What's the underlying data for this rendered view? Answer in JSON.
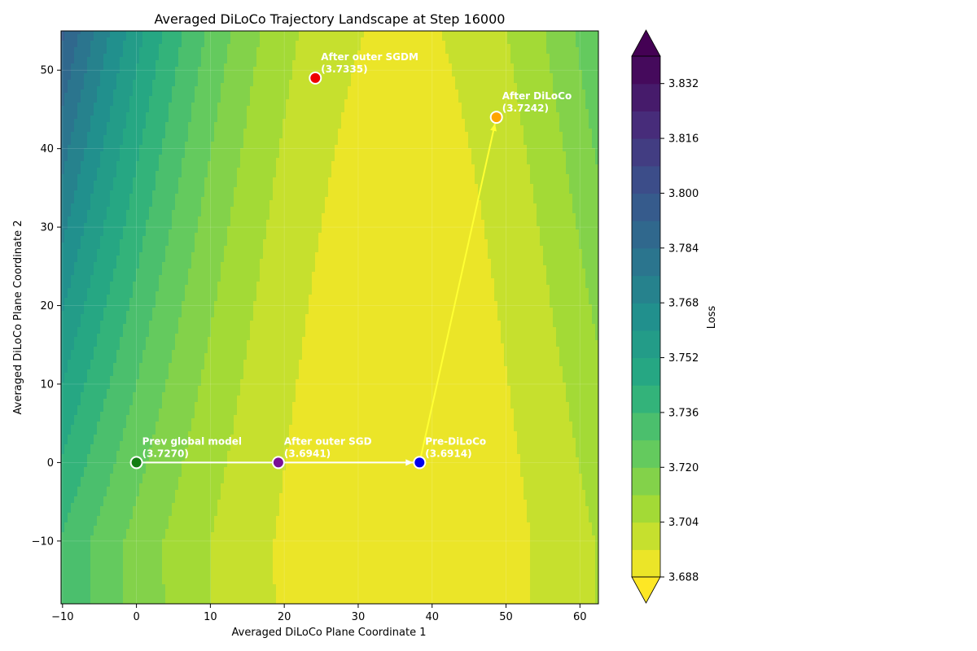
{
  "chart_data": {
    "type": "contour",
    "title": "Averaged DiLoCo Trajectory Landscape at Step 16000",
    "xlabel": "Averaged DiLoCo Plane Coordinate 1",
    "ylabel": "Averaged DiLoCo Plane Coordinate 2",
    "xlim": [
      -10.2,
      62.5
    ],
    "ylim": [
      -18,
      55
    ],
    "xticks": [
      -10,
      0,
      10,
      20,
      30,
      40,
      50,
      60
    ],
    "yticks": [
      -10,
      0,
      10,
      20,
      30,
      40,
      50
    ],
    "colorbar": {
      "label": "Loss",
      "colormap": "viridis_r",
      "range": [
        3.688,
        3.84
      ],
      "ticks": [
        "3.688",
        "3.704",
        "3.720",
        "3.736",
        "3.752",
        "3.768",
        "3.784",
        "3.800",
        "3.816",
        "3.832"
      ],
      "tick_values": [
        3.688,
        3.704,
        3.72,
        3.736,
        3.752,
        3.768,
        3.784,
        3.8,
        3.816,
        3.832
      ],
      "extend": "both"
    },
    "points": [
      {
        "name": "Prev global model",
        "loss_label": "(3.7270)",
        "x": 0,
        "y": 0,
        "color": "#137c13"
      },
      {
        "name": "After outer SGD",
        "loss_label": "(3.6941)",
        "x": 19.2,
        "y": 0,
        "color": "#7a1096"
      },
      {
        "name": "Pre-DiLoCo",
        "loss_label": "(3.6914)",
        "x": 38.3,
        "y": 0,
        "color": "#0000ee"
      },
      {
        "name": "After DiLoCo",
        "loss_label": "(3.7242)",
        "x": 48.7,
        "y": 44,
        "color": "#ffa500"
      },
      {
        "name": "After outer SGDM",
        "loss_label": "(3.7335)",
        "x": 24.2,
        "y": 49,
        "color": "#ee0000"
      }
    ],
    "arrows": [
      {
        "from": [
          0,
          0
        ],
        "to": [
          38.3,
          0
        ],
        "color": "#ffffff"
      },
      {
        "from": [
          38.3,
          0
        ],
        "to": [
          48.7,
          44
        ],
        "color": "#ffff33"
      }
    ]
  }
}
